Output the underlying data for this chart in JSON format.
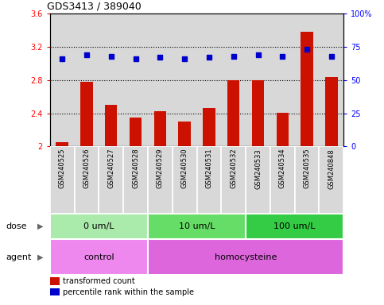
{
  "title": "GDS3413 / 389040",
  "samples": [
    "GSM240525",
    "GSM240526",
    "GSM240527",
    "GSM240528",
    "GSM240529",
    "GSM240530",
    "GSM240531",
    "GSM240532",
    "GSM240533",
    "GSM240534",
    "GSM240535",
    "GSM240848"
  ],
  "red_values": [
    2.05,
    2.78,
    2.5,
    2.35,
    2.42,
    2.3,
    2.46,
    2.8,
    2.8,
    2.41,
    3.38,
    2.84
  ],
  "blue_values": [
    66,
    69,
    68,
    66,
    67,
    66,
    67,
    68,
    69,
    68,
    73,
    68
  ],
  "ylim_left": [
    2.0,
    3.6
  ],
  "ylim_right": [
    0,
    100
  ],
  "yticks_left": [
    2.0,
    2.4,
    2.8,
    3.2,
    3.6
  ],
  "yticks_right": [
    0,
    25,
    50,
    75,
    100
  ],
  "ytick_labels_left": [
    "2",
    "2.4",
    "2.8",
    "3.2",
    "3.6"
  ],
  "ytick_labels_right": [
    "0",
    "25",
    "50",
    "75",
    "100%"
  ],
  "hlines": [
    2.4,
    2.8,
    3.2
  ],
  "dose_groups": [
    {
      "label": "0 um/L",
      "start": 0,
      "end": 4,
      "color": "#AAEAAA"
    },
    {
      "label": "10 um/L",
      "start": 4,
      "end": 8,
      "color": "#66DD66"
    },
    {
      "label": "100 um/L",
      "start": 8,
      "end": 12,
      "color": "#33CC44"
    }
  ],
  "agent_groups": [
    {
      "label": "control",
      "start": 0,
      "end": 4,
      "color": "#EE88EE"
    },
    {
      "label": "homocysteine",
      "start": 4,
      "end": 12,
      "color": "#DD66DD"
    }
  ],
  "bar_color": "#CC1100",
  "dot_color": "#0000CC",
  "bg_color": "#D8D8D8",
  "legend_red": "transformed count",
  "legend_blue": "percentile rank within the sample",
  "dose_label": "dose",
  "agent_label": "agent"
}
